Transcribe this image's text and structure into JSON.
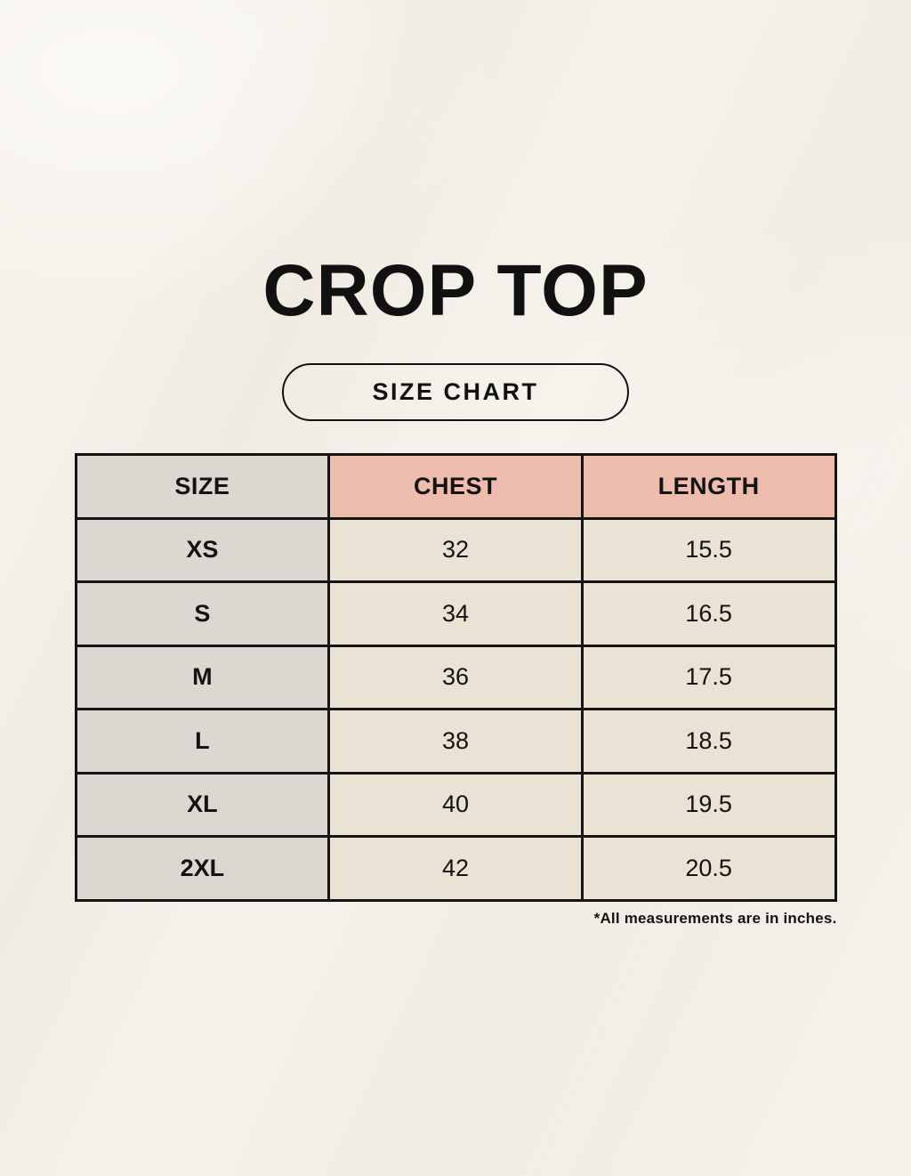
{
  "page": {
    "title": "CROP TOP",
    "badge_label": "SIZE CHART",
    "footnote": "*All measurements are in inches."
  },
  "chart_data": {
    "type": "table",
    "title": "CROP TOP",
    "subtitle": "SIZE CHART",
    "columns": [
      "SIZE",
      "CHEST",
      "LENGTH"
    ],
    "rows": [
      [
        "XS",
        "32",
        "15.5"
      ],
      [
        "S",
        "34",
        "16.5"
      ],
      [
        "M",
        "36",
        "17.5"
      ],
      [
        "L",
        "38",
        "18.5"
      ],
      [
        "XL",
        "40",
        "19.5"
      ],
      [
        "2XL",
        "42",
        "20.5"
      ]
    ],
    "units": "inches",
    "footnote": "*All measurements are in inches."
  },
  "colors": {
    "background": "#f5f1ea",
    "ink": "#131313",
    "header_pink": "#eebcad",
    "size_column_gray": "#ddd7d1",
    "cell_cream": "#e9e2d5",
    "table_border": "#141414"
  }
}
